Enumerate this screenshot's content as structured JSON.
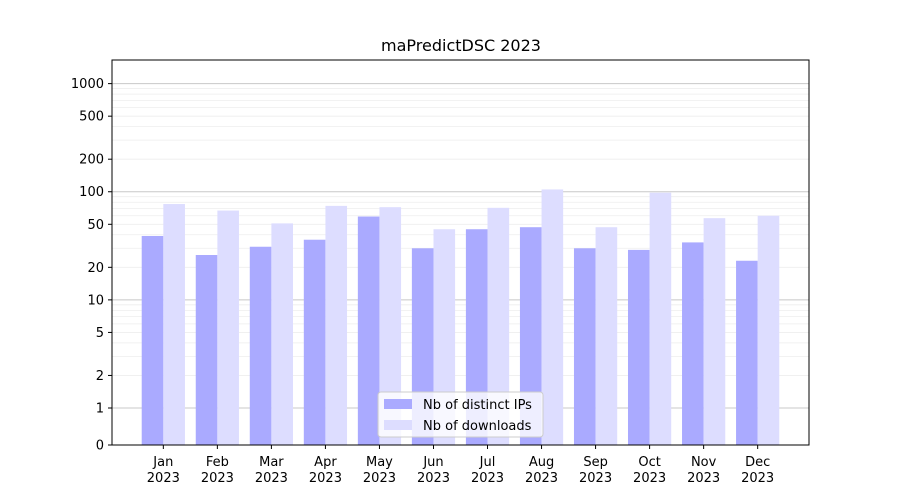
{
  "chart_data": {
    "type": "bar",
    "title": "maPredictDSC 2023",
    "xlabel": "",
    "ylabel": "",
    "y_scale": "symlog",
    "ylim": [
      0,
      1300
    ],
    "y_ticks": [
      0,
      1,
      2,
      5,
      10,
      20,
      50,
      100,
      200,
      500,
      1000
    ],
    "categories": [
      "Jan\n2023",
      "Feb\n2023",
      "Mar\n2023",
      "Apr\n2023",
      "May\n2023",
      "Jun\n2023",
      "Jul\n2023",
      "Aug\n2023",
      "Sep\n2023",
      "Oct\n2023",
      "Nov\n2023",
      "Dec\n2023"
    ],
    "series": [
      {
        "name": "Nb of distinct IPs",
        "color": "#aaaaff",
        "values": [
          39,
          26,
          31,
          36,
          59,
          30,
          45,
          47,
          30,
          29,
          34,
          23
        ]
      },
      {
        "name": "Nb of downloads",
        "color": "#ddddff",
        "values": [
          77,
          67,
          51,
          74,
          72,
          45,
          71,
          105,
          47,
          98,
          57,
          60
        ]
      }
    ],
    "legend_position": "bottom-center",
    "grid": true
  }
}
